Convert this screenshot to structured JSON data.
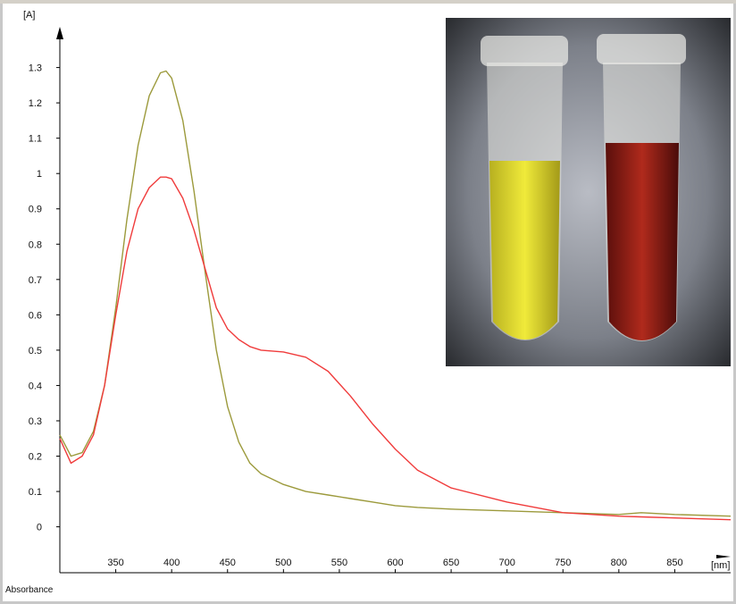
{
  "chart_data": {
    "type": "line",
    "y_label": "[A]",
    "x_label": "[nm]",
    "footer": "Absorbance",
    "x": [
      300,
      310,
      320,
      330,
      340,
      350,
      360,
      370,
      380,
      390,
      395,
      400,
      410,
      420,
      430,
      440,
      450,
      460,
      470,
      480,
      500,
      520,
      540,
      560,
      580,
      600,
      620,
      650,
      700,
      750,
      800,
      820,
      850,
      900
    ],
    "series": [
      {
        "color": "#9c9a3c",
        "values": [
          0.26,
          0.2,
          0.21,
          0.27,
          0.4,
          0.62,
          0.87,
          1.08,
          1.22,
          1.285,
          1.29,
          1.27,
          1.15,
          0.95,
          0.72,
          0.5,
          0.34,
          0.24,
          0.18,
          0.15,
          0.12,
          0.1,
          0.09,
          0.08,
          0.07,
          0.06,
          0.055,
          0.05,
          0.045,
          0.04,
          0.035,
          0.04,
          0.035,
          0.03
        ]
      },
      {
        "color": "#f03c3c",
        "values": [
          0.25,
          0.18,
          0.2,
          0.26,
          0.4,
          0.6,
          0.78,
          0.9,
          0.96,
          0.99,
          0.99,
          0.985,
          0.93,
          0.84,
          0.73,
          0.62,
          0.56,
          0.53,
          0.51,
          0.5,
          0.495,
          0.48,
          0.44,
          0.37,
          0.29,
          0.22,
          0.16,
          0.11,
          0.07,
          0.04,
          0.03,
          0.028,
          0.025,
          0.02
        ]
      }
    ],
    "xlim": [
      300,
      900
    ],
    "ylim": [
      -0.13,
      1.39
    ],
    "xticks": [
      350,
      400,
      450,
      500,
      550,
      600,
      650,
      700,
      750,
      800,
      850
    ],
    "yticks": [
      0,
      0.1,
      0.2,
      0.3,
      0.4,
      0.5,
      0.6,
      0.7,
      0.8,
      0.9,
      1,
      1.1,
      1.2,
      1.3
    ]
  }
}
